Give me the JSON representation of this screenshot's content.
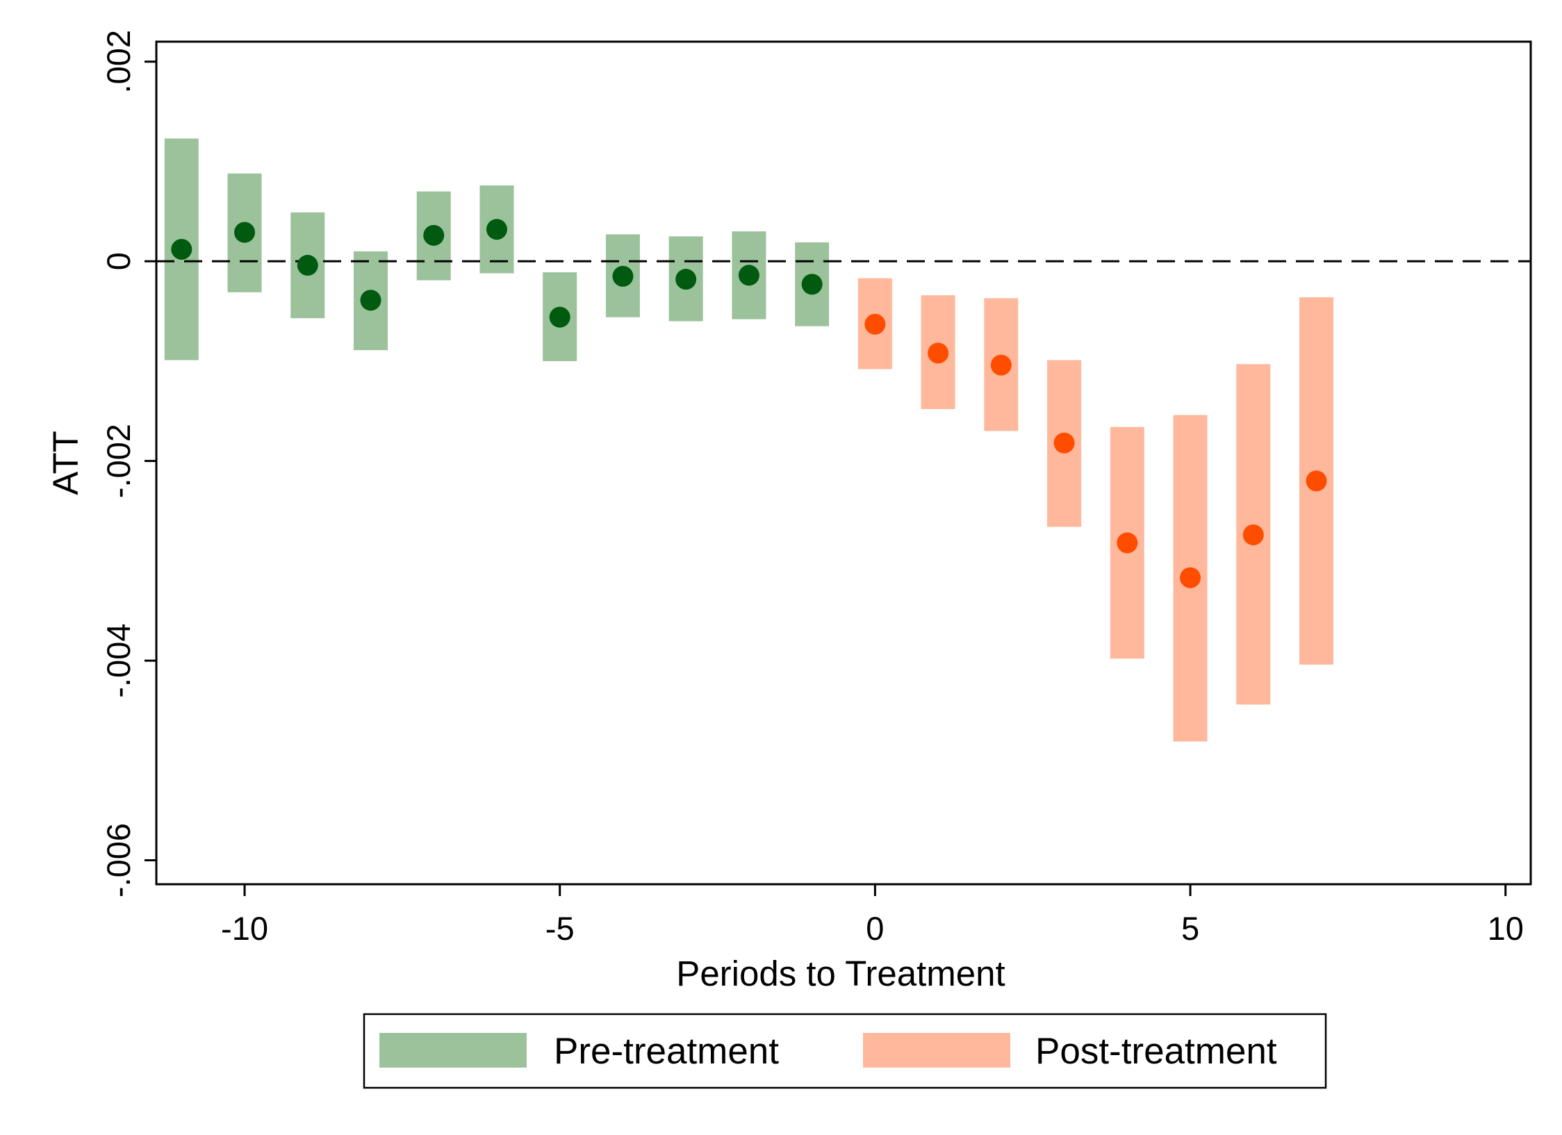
{
  "chart_data": {
    "type": "scatter",
    "title": "",
    "xlabel": "Periods to Treatment",
    "ylabel": "ATT",
    "xlim": [
      -11.4,
      10.4
    ],
    "ylim": [
      -0.00624,
      0.0022
    ],
    "xticks": [
      {
        "value": -10,
        "label": "-10"
      },
      {
        "value": -5,
        "label": "-5"
      },
      {
        "value": 0,
        "label": "0"
      },
      {
        "value": 5,
        "label": "5"
      },
      {
        "value": 10,
        "label": "10"
      }
    ],
    "yticks": [
      {
        "value": 0.002,
        "label": ".002"
      },
      {
        "value": 0,
        "label": "0"
      },
      {
        "value": -0.002,
        "label": "-.002"
      },
      {
        "value": -0.004,
        "label": "-.004"
      },
      {
        "value": -0.006,
        "label": "-.006"
      }
    ],
    "reference_line": {
      "y": 0,
      "style": "dashed"
    },
    "grid": false,
    "legend_position": "bottom",
    "series": [
      {
        "name": "Pre-treatment",
        "bar_color": "#9bc29b",
        "point_color": "#005a0f",
        "points": [
          {
            "x": -11,
            "y": 0.00012,
            "ci_low": -0.00099,
            "ci_high": 0.00123
          },
          {
            "x": -10,
            "y": 0.00029,
            "ci_low": -0.00031,
            "ci_high": 0.00088
          },
          {
            "x": -9,
            "y": -4e-05,
            "ci_low": -0.00057,
            "ci_high": 0.00049
          },
          {
            "x": -8,
            "y": -0.00039,
            "ci_low": -0.00089,
            "ci_high": 0.0001
          },
          {
            "x": -7,
            "y": 0.00026,
            "ci_low": -0.00019,
            "ci_high": 0.0007
          },
          {
            "x": -6,
            "y": 0.00032,
            "ci_low": -0.00012,
            "ci_high": 0.00076
          },
          {
            "x": -5,
            "y": -0.00056,
            "ci_low": -0.001,
            "ci_high": -0.00011
          },
          {
            "x": -4,
            "y": -0.00015,
            "ci_low": -0.00056,
            "ci_high": 0.00027
          },
          {
            "x": -3,
            "y": -0.00018,
            "ci_low": -0.0006,
            "ci_high": 0.00025
          },
          {
            "x": -2,
            "y": -0.00014,
            "ci_low": -0.00058,
            "ci_high": 0.0003
          },
          {
            "x": -1,
            "y": -0.00023,
            "ci_low": -0.00065,
            "ci_high": 0.00019
          }
        ]
      },
      {
        "name": "Post-treatment",
        "bar_color": "#ffb89c",
        "point_color": "#ff4d00",
        "points": [
          {
            "x": 0,
            "y": -0.00063,
            "ci_low": -0.00108,
            "ci_high": -0.00017
          },
          {
            "x": 1,
            "y": -0.00092,
            "ci_low": -0.00148,
            "ci_high": -0.00034
          },
          {
            "x": 2,
            "y": -0.00104,
            "ci_low": -0.0017,
            "ci_high": -0.00037
          },
          {
            "x": 3,
            "y": -0.00182,
            "ci_low": -0.00266,
            "ci_high": -0.00099
          },
          {
            "x": 4,
            "y": -0.00282,
            "ci_low": -0.00398,
            "ci_high": -0.00166
          },
          {
            "x": 5,
            "y": -0.00317,
            "ci_low": -0.00481,
            "ci_high": -0.00154
          },
          {
            "x": 6,
            "y": -0.00274,
            "ci_low": -0.00444,
            "ci_high": -0.00103
          },
          {
            "x": 7,
            "y": -0.0022,
            "ci_low": -0.00404,
            "ci_high": -0.00036
          }
        ]
      }
    ]
  }
}
